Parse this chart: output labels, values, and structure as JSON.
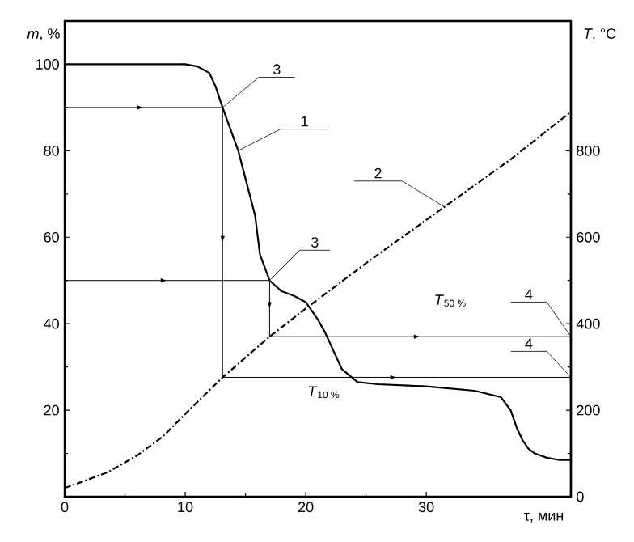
{
  "chart_data": {
    "type": "line",
    "xlabel": "τ, мин",
    "ylabel": "*m*, %",
    "y2label": "*T*, °C",
    "xlim": [
      0,
      42
    ],
    "xticks": [
      0,
      10,
      20,
      30
    ],
    "ylim": [
      0,
      110
    ],
    "yticks": [
      {
        "value": 0,
        "label": null
      },
      20,
      40,
      60,
      80,
      100
    ],
    "y2lim": [
      0,
      1100
    ],
    "y2ticks": [
      0,
      200,
      400,
      600,
      800
    ],
    "series": [
      {
        "color": "#000000",
        "line_style": "solid",
        "x": [
          0,
          5,
          10,
          11,
          12,
          12.5,
          13.1,
          14.4,
          15.8,
          16.2,
          17,
          18,
          19,
          20,
          21,
          21.6,
          23,
          24.3,
          26,
          30,
          34,
          36.2,
          37,
          37.5,
          38,
          38.5,
          39,
          39.5,
          40,
          41,
          42
        ],
        "values": [
          100,
          100,
          100,
          99.5,
          98,
          95,
          90,
          80,
          65,
          56,
          50,
          47.5,
          46.5,
          45,
          41,
          38,
          29.5,
          26.5,
          26,
          25.5,
          24.5,
          23,
          20,
          16,
          13,
          11,
          10,
          9.5,
          9,
          8.5,
          8.5
        ]
      },
      {
        "color": "#000000",
        "line_style": "dashed",
        "axis": "y2",
        "x": [
          0,
          1.5,
          3.6,
          6,
          8.1,
          10.5,
          13.1,
          17,
          20,
          25,
          31.5,
          37,
          42
        ],
        "values": [
          20,
          35,
          57,
          95,
          138,
          205,
          276,
          370,
          435,
          540,
          670,
          780,
          890
        ]
      },
      {
        "color": "#000000",
        "x": [
          0,
          13.1
        ],
        "values": [
          90,
          90
        ]
      },
      {
        "color": "#000000",
        "x": [
          13.1,
          13.1
        ],
        "values": [
          90,
          27.6
        ]
      },
      {
        "color": "#000000",
        "axis": "y2",
        "x": [
          13.1,
          42
        ],
        "values": [
          276,
          276
        ]
      },
      {
        "color": "#000000",
        "x": [
          0,
          17
        ],
        "values": [
          50,
          50
        ]
      },
      {
        "color": "#000000",
        "x": [
          17,
          17
        ],
        "values": [
          50,
          37
        ]
      },
      {
        "color": "#000000",
        "axis": "y2",
        "x": [
          17,
          42
        ],
        "values": [
          370,
          370
        ]
      }
    ],
    "annotations": [
      {
        "text": "1",
        "x": 14.4,
        "y": 80
      },
      {
        "text": "2",
        "x": 31.5,
        "y": 67
      },
      {
        "text": "3",
        "x": 13.1,
        "y": 90
      },
      {
        "text": "3",
        "x": 17,
        "y": 50
      },
      {
        "text": "4",
        "x": 42,
        "y": 37
      },
      {
        "text": "4",
        "x": 42,
        "y": 27.6
      },
      {
        "text": "*T*$_{50 %}$",
        "x": 32,
        "y": 37
      },
      {
        "text": "*T*$_{10 %}$",
        "x": 21.5,
        "y": 27.6
      }
    ]
  }
}
